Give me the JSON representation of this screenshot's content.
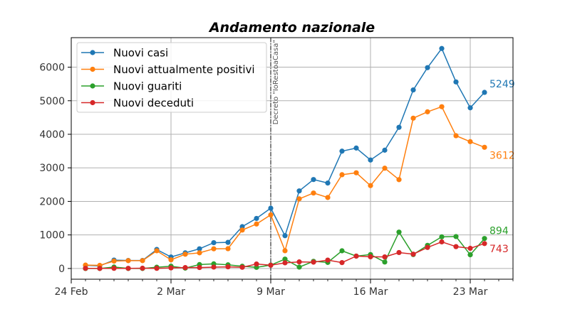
{
  "chart_data": {
    "type": "line",
    "title": "Andamento nazionale",
    "xlabel": "",
    "ylabel": "",
    "x": [
      "2020-02-25",
      "2020-02-26",
      "2020-02-27",
      "2020-02-28",
      "2020-02-29",
      "2020-03-01",
      "2020-03-02",
      "2020-03-03",
      "2020-03-04",
      "2020-03-05",
      "2020-03-06",
      "2020-03-07",
      "2020-03-08",
      "2020-03-09",
      "2020-03-10",
      "2020-03-11",
      "2020-03-12",
      "2020-03-13",
      "2020-03-14",
      "2020-03-15",
      "2020-03-16",
      "2020-03-17",
      "2020-03-18",
      "2020-03-19",
      "2020-03-20",
      "2020-03-21",
      "2020-03-22",
      "2020-03-23",
      "2020-03-24"
    ],
    "x_range": [
      "2020-02-24",
      "2020-03-26"
    ],
    "x_ticks": [
      "24 Feb",
      "2 Mar",
      "9 Mar",
      "16 Mar",
      "23 Mar"
    ],
    "y_ticks": [
      "0",
      "1000",
      "2000",
      "3000",
      "4000",
      "5000",
      "6000"
    ],
    "ylim": [
      -320,
      6880
    ],
    "grid": true,
    "legend_position": "top-left",
    "series": [
      {
        "name": "Nuovi casi",
        "color": "#1f77b4",
        "values": [
          93,
          78,
          250,
          238,
          240,
          566,
          342,
          466,
          587,
          769,
          778,
          1247,
          1492,
          1797,
          977,
          2313,
          2651,
          2547,
          3497,
          3590,
          3233,
          3526,
          4207,
          5322,
          5986,
          6557,
          5560,
          4789,
          5249
        ]
      },
      {
        "name": "Nuovi attualmente positivi",
        "color": "#ff7f0e",
        "values": [
          101,
          93,
          221,
          233,
          233,
          528,
          258,
          425,
          466,
          587,
          590,
          1145,
          1326,
          1598,
          529,
          2076,
          2249,
          2116,
          2795,
          2853,
          2470,
          2989,
          2648,
          4480,
          4670,
          4821,
          3957,
          3780,
          3612
        ]
      },
      {
        "name": "Nuovi guariti",
        "color": "#2ca02c",
        "values": [
          -1,
          0,
          42,
          1,
          0,
          37,
          67,
          11,
          116,
          138,
          109,
          66,
          33,
          102,
          280,
          41,
          213,
          181,
          527,
          369,
          414,
          192,
          1084,
          415,
          689,
          943,
          952,
          408,
          894
        ]
      },
      {
        "name": "Nuovi deceduti",
        "color": "#d62728",
        "values": [
          4,
          1,
          5,
          4,
          8,
          5,
          18,
          27,
          28,
          41,
          49,
          36,
          133,
          97,
          168,
          196,
          189,
          250,
          175,
          368,
          349,
          345,
          475,
          427,
          627,
          793,
          651,
          601,
          743
        ]
      }
    ],
    "annotations": [
      {
        "text": "5249",
        "x": "2020-03-24",
        "y": 5249,
        "color": "#1f77b4"
      },
      {
        "text": "3612",
        "x": "2020-03-24",
        "y": 3612,
        "color": "#ff7f0e"
      },
      {
        "text": "894",
        "x": "2020-03-24",
        "y": 894,
        "color": "#2ca02c"
      },
      {
        "text": "743",
        "x": "2020-03-24",
        "y": 743,
        "color": "#d62728"
      }
    ],
    "vline": {
      "x": "2020-03-09",
      "label": "Decreto \"IoRestoaCasa\"",
      "color": "#333333"
    }
  }
}
